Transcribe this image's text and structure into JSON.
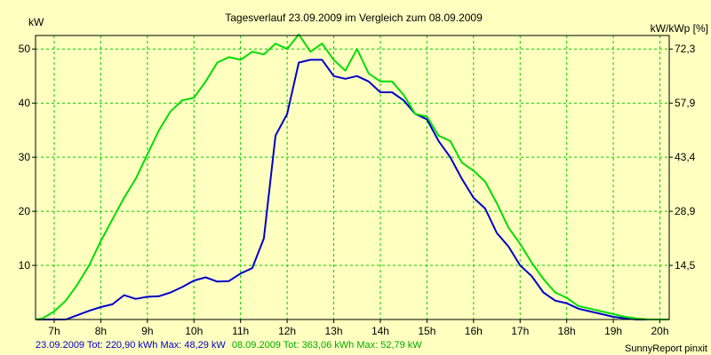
{
  "chart_data": {
    "type": "line",
    "title": "Tagesverlauf 23.09.2009 im Vergleich zum 08.09.2009",
    "ylabel_left": "kW",
    "ylabel_right": "kW/kWp [%]",
    "xlim": [
      6.6,
      20.2
    ],
    "ylim": [
      0,
      52.5
    ],
    "grid": true,
    "x_ticks": [
      {
        "v": 7,
        "label": "7h"
      },
      {
        "v": 8,
        "label": "8h"
      },
      {
        "v": 9,
        "label": "9h"
      },
      {
        "v": 10,
        "label": "10h"
      },
      {
        "v": 11,
        "label": "11h"
      },
      {
        "v": 12,
        "label": "12h"
      },
      {
        "v": 13,
        "label": "13h"
      },
      {
        "v": 14,
        "label": "14h"
      },
      {
        "v": 15,
        "label": "15h"
      },
      {
        "v": 16,
        "label": "16h"
      },
      {
        "v": 17,
        "label": "17h"
      },
      {
        "v": 18,
        "label": "18h"
      },
      {
        "v": 19,
        "label": "19h"
      },
      {
        "v": 20,
        "label": "20h"
      }
    ],
    "y_ticks_left": [
      {
        "v": 10,
        "label": "10"
      },
      {
        "v": 20,
        "label": "20"
      },
      {
        "v": 30,
        "label": "30"
      },
      {
        "v": 40,
        "label": "40"
      },
      {
        "v": 50,
        "label": "50"
      }
    ],
    "y_ticks_right": [
      {
        "v": 10,
        "label": "14,5"
      },
      {
        "v": 20,
        "label": "28,9"
      },
      {
        "v": 30,
        "label": "43,4"
      },
      {
        "v": 40,
        "label": "57,9"
      },
      {
        "v": 50,
        "label": "72,3"
      }
    ],
    "series": [
      {
        "name": "23.09.2009",
        "color": "#0000cc",
        "x": [
          6.6,
          7.25,
          7.5,
          7.75,
          8.0,
          8.25,
          8.5,
          8.75,
          9.0,
          9.25,
          9.5,
          9.75,
          10.0,
          10.25,
          10.5,
          10.75,
          11.0,
          11.25,
          11.5,
          11.75,
          12.0,
          12.25,
          12.5,
          12.75,
          13.0,
          13.25,
          13.5,
          13.75,
          14.0,
          14.25,
          14.5,
          14.75,
          15.0,
          15.25,
          15.5,
          15.75,
          16.0,
          16.25,
          16.5,
          16.75,
          17.0,
          17.25,
          17.5,
          17.75,
          18.0,
          18.25,
          18.5,
          18.75,
          19.0,
          19.25,
          19.5,
          20.2
        ],
        "values": [
          0,
          0,
          0.8,
          1.6,
          2.3,
          2.8,
          4.5,
          3.8,
          4.2,
          4.3,
          5.0,
          6.0,
          7.2,
          7.8,
          7.0,
          7.1,
          8.5,
          9.5,
          15.0,
          34.0,
          38.0,
          47.5,
          48.0,
          48.0,
          45.0,
          44.5,
          45.0,
          44.0,
          42.0,
          42.0,
          40.5,
          38.0,
          37.0,
          33.0,
          30.0,
          26.0,
          22.5,
          20.5,
          16.0,
          13.5,
          10.0,
          8.0,
          5.0,
          3.5,
          3.0,
          2.0,
          1.5,
          1.0,
          0.5,
          0.2,
          0,
          0
        ]
      },
      {
        "name": "08.09.2009",
        "color": "#00dd00",
        "x": [
          6.6,
          6.75,
          7.0,
          7.25,
          7.5,
          7.75,
          8.0,
          8.25,
          8.5,
          8.75,
          9.0,
          9.25,
          9.5,
          9.75,
          10.0,
          10.25,
          10.5,
          10.75,
          11.0,
          11.25,
          11.5,
          11.75,
          12.0,
          12.25,
          12.5,
          12.75,
          13.0,
          13.25,
          13.5,
          13.75,
          14.0,
          14.25,
          14.5,
          14.75,
          15.0,
          15.25,
          15.5,
          15.75,
          16.0,
          16.25,
          16.5,
          16.75,
          17.0,
          17.25,
          17.5,
          17.75,
          18.0,
          18.25,
          18.5,
          18.75,
          19.0,
          19.25,
          19.5,
          19.75,
          20.0,
          20.2
        ],
        "values": [
          0,
          0.2,
          1.5,
          3.5,
          6.5,
          10.0,
          14.5,
          18.5,
          22.5,
          26.0,
          30.5,
          35.0,
          38.5,
          40.5,
          41.0,
          44.0,
          47.5,
          48.5,
          48.0,
          49.5,
          49.0,
          51.0,
          50.0,
          52.7,
          49.5,
          51.0,
          48.0,
          46.0,
          50.0,
          45.5,
          44.0,
          44.0,
          41.5,
          38.0,
          37.5,
          34.0,
          33.0,
          29.0,
          27.5,
          25.5,
          21.5,
          17.0,
          14.0,
          10.5,
          7.5,
          5.0,
          4.0,
          2.5,
          2.0,
          1.5,
          1.0,
          0.5,
          0.2,
          0,
          0,
          0
        ]
      }
    ]
  },
  "footer": {
    "series1_text": "23.09.2009 Tot: 220,90 kWh Max: 48,29 kW",
    "series2_text": "08.09.2009 Tot: 363,06 kWh Max: 52,79 kW",
    "credit": "SunnyReport pinxit"
  }
}
